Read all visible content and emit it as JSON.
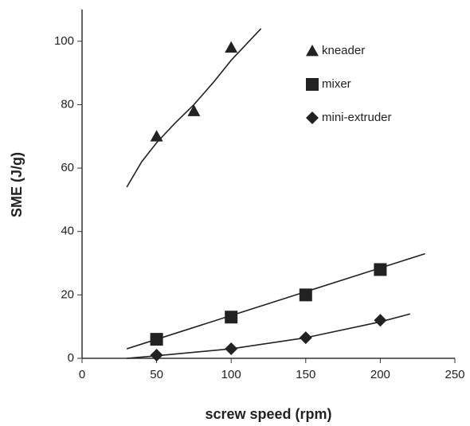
{
  "chart_data": {
    "type": "scatter",
    "x_label": "screw speed (rpm)",
    "y_label": "SME (J/g)",
    "xlim": [
      0,
      250
    ],
    "ylim": [
      0,
      110
    ],
    "xticks": [
      0,
      50,
      100,
      150,
      200,
      250
    ],
    "yticks": [
      0,
      20,
      40,
      60,
      80,
      100
    ],
    "legend": "upper right",
    "series": [
      {
        "name": "kneader",
        "color": "#222222",
        "marker": "triangle",
        "x": [
          50,
          75,
          100
        ],
        "values": [
          70,
          78,
          98
        ],
        "trend": {
          "x": [
            30,
            40,
            50,
            62,
            75,
            88,
            100,
            110,
            120
          ],
          "values": [
            54,
            62,
            68,
            74,
            80,
            87,
            94,
            99,
            104
          ]
        }
      },
      {
        "name": "mixer",
        "color": "#222222",
        "marker": "square",
        "x": [
          50,
          100,
          150,
          200
        ],
        "values": [
          6,
          13,
          20,
          28
        ],
        "trend": {
          "x": [
            30,
            230
          ],
          "values": [
            3,
            33
          ]
        }
      },
      {
        "name": "mini-extruder",
        "color": "#222222",
        "marker": "diamond",
        "x": [
          50,
          100,
          150,
          200
        ],
        "values": [
          1,
          3,
          6.5,
          12
        ],
        "trend": {
          "x": [
            30,
            50,
            100,
            150,
            200,
            220
          ],
          "values": [
            0,
            0.8,
            3,
            6.5,
            11.5,
            14
          ]
        }
      }
    ]
  }
}
